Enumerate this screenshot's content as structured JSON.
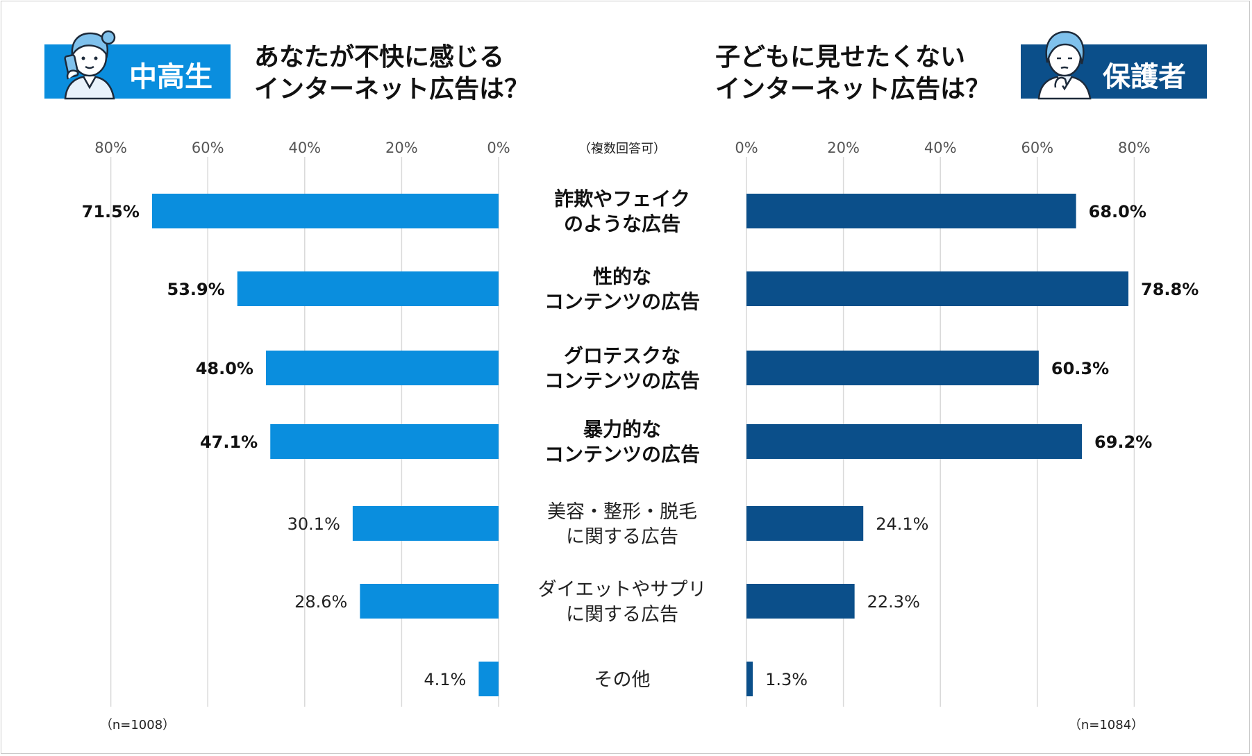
{
  "left_panel": {
    "badge": "中高生",
    "title_lines": [
      "あなたが不快に感じる",
      "インターネット広告は？"
    ],
    "n": "（n=1008）"
  },
  "right_panel": {
    "badge": "保護者",
    "title_lines": [
      "子どもに見せたくない",
      "インターネット広告は？"
    ],
    "n": "（n=1084）"
  },
  "multi_answer_note": "（複数回答可）",
  "colors": {
    "left_bar": "#0a8ede",
    "right_bar": "#0b4f8a",
    "grid": "#d9d9d9",
    "frame": "#c9c9c9"
  },
  "icons": {
    "left_avatar": "student-on-phone-icon",
    "right_avatar": "thinking-parent-icon"
  },
  "chart_data": [
    {
      "type": "bar",
      "orientation": "horizontal-left",
      "categories": [
        [
          "詐欺やフェイク",
          "のような広告"
        ],
        [
          "性的な",
          "コンテンツの広告"
        ],
        [
          "グロテスクな",
          "コンテンツの広告"
        ],
        [
          "暴力的な",
          "コンテンツの広告"
        ],
        [
          "美容・整形・脱毛",
          "に関する広告"
        ],
        [
          "ダイエットやサプリ",
          "に関する広告"
        ],
        [
          "その他"
        ]
      ],
      "emphasized": [
        true,
        true,
        true,
        true,
        false,
        false,
        false
      ],
      "values": [
        71.5,
        53.9,
        48.0,
        47.1,
        30.1,
        28.6,
        4.1
      ],
      "value_labels": [
        "71.5%",
        "53.9%",
        "48.0%",
        "47.1%",
        "30.1%",
        "28.6%",
        "4.1%"
      ],
      "xlim": [
        0,
        80
      ],
      "xticks": [
        "80%",
        "60%",
        "40%",
        "20%",
        "0%"
      ],
      "grid": true
    },
    {
      "type": "bar",
      "orientation": "horizontal-right",
      "values": [
        68.0,
        78.8,
        60.3,
        69.2,
        24.1,
        22.3,
        1.3
      ],
      "value_labels": [
        "68.0%",
        "78.8%",
        "60.3%",
        "69.2%",
        "24.1%",
        "22.3%",
        "1.3%"
      ],
      "xlim": [
        0,
        80
      ],
      "xticks": [
        "0%",
        "20%",
        "40%",
        "60%",
        "80%"
      ],
      "grid": true
    }
  ]
}
